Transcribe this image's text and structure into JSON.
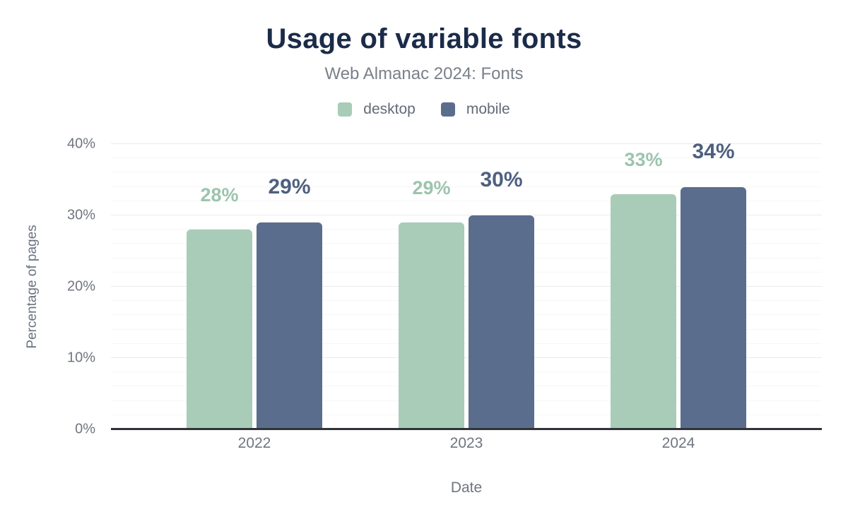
{
  "chart_data": {
    "type": "bar",
    "title": "Usage of variable fonts",
    "subtitle": "Web Almanac 2024: Fonts",
    "categories": [
      "2022",
      "2023",
      "2024"
    ],
    "series": [
      {
        "name": "desktop",
        "color": "#a8ccb8",
        "label_color": "#9cc4ae",
        "values": [
          28,
          29,
          33
        ],
        "value_labels": [
          "28%",
          "29%",
          "33%"
        ]
      },
      {
        "name": "mobile",
        "color": "#5b6d8c",
        "label_color": "#4e6080",
        "values": [
          29,
          30,
          34
        ],
        "value_labels": [
          "29%",
          "30%",
          "34%"
        ]
      }
    ],
    "xlabel": "Date",
    "ylabel": "Percentage of pages",
    "ylim": [
      0,
      40
    ],
    "yticks": [
      0,
      10,
      20,
      30,
      40
    ],
    "ytick_labels": [
      "0%",
      "10%",
      "20%",
      "30%",
      "40%"
    ],
    "minor_grid_step": 2,
    "grid": "horizontal",
    "legend_position": "top"
  },
  "colors": {
    "title": "#1b2b49",
    "subtitle": "#7a8089",
    "axis_text": "#70757f",
    "major_grid": "#ebebeb",
    "minor_grid": "#f6f6f6",
    "baseline": "#2f3338",
    "background": "#ffffff"
  }
}
